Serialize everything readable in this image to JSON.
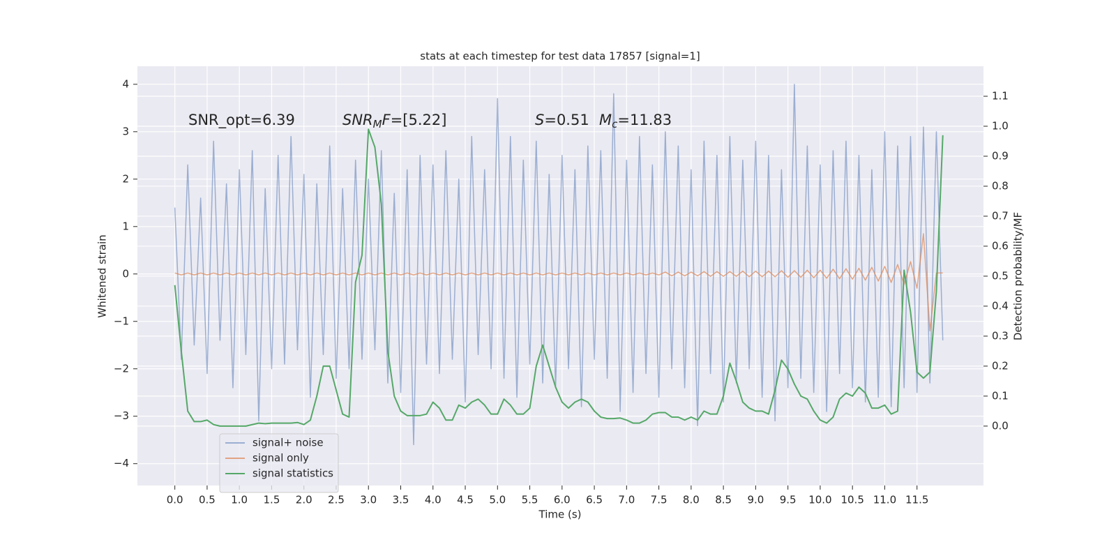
{
  "chart_data": {
    "type": "line",
    "title": "stats at each timestep for test data 17857 [signal=1]",
    "x_label": "Time (s)",
    "y_label": "Whitened strain",
    "y2_label": "Detection probability/MF",
    "x": [
      0.0,
      0.1,
      0.2,
      0.3,
      0.4,
      0.5,
      0.6,
      0.7,
      0.8,
      0.9,
      1.0,
      1.1,
      1.2,
      1.3,
      1.4,
      1.5,
      1.6,
      1.7,
      1.8,
      1.9,
      2.0,
      2.1,
      2.2,
      2.3,
      2.4,
      2.5,
      2.6,
      2.7,
      2.8,
      2.9,
      3.0,
      3.1,
      3.2,
      3.3,
      3.4,
      3.5,
      3.6,
      3.7,
      3.8,
      3.9,
      4.0,
      4.1,
      4.2,
      4.3,
      4.4,
      4.5,
      4.6,
      4.7,
      4.8,
      4.9,
      5.0,
      5.1,
      5.2,
      5.3,
      5.4,
      5.5,
      5.6,
      5.7,
      5.8,
      5.9,
      6.0,
      6.1,
      6.2,
      6.3,
      6.4,
      6.5,
      6.6,
      6.7,
      6.8,
      6.9,
      7.0,
      7.1,
      7.2,
      7.3,
      7.4,
      7.5,
      7.6,
      7.7,
      7.8,
      7.9,
      8.0,
      8.1,
      8.2,
      8.3,
      8.4,
      8.5,
      8.6,
      8.7,
      8.8,
      8.9,
      9.0,
      9.1,
      9.2,
      9.3,
      9.4,
      9.5,
      9.6,
      9.7,
      9.8,
      9.9,
      10.0,
      10.1,
      10.2,
      10.3,
      10.4,
      10.5,
      10.6,
      10.7,
      10.8,
      10.9,
      11.0,
      11.1,
      11.2,
      11.3,
      11.4,
      11.5,
      11.6,
      11.7,
      11.8,
      11.9
    ],
    "series": [
      {
        "name": "signal+ noise",
        "color": "#4c72b0",
        "alpha": 0.5,
        "axis": "y",
        "values": [
          1.4,
          -1.8,
          2.3,
          -1.5,
          1.6,
          -2.1,
          2.8,
          -1.4,
          1.9,
          -2.4,
          2.2,
          -1.7,
          2.6,
          -3.1,
          1.8,
          -2.0,
          2.5,
          -1.9,
          2.9,
          -1.6,
          2.1,
          -2.6,
          1.9,
          -1.7,
          2.7,
          -2.2,
          1.8,
          -2.0,
          2.4,
          -1.8,
          2.0,
          -1.6,
          2.6,
          -2.3,
          1.7,
          -2.5,
          2.2,
          -3.6,
          2.5,
          -1.9,
          2.3,
          -2.1,
          2.6,
          -1.8,
          2.0,
          -2.7,
          2.9,
          -1.7,
          2.2,
          -2.0,
          3.7,
          -2.2,
          2.9,
          -2.6,
          2.4,
          -1.9,
          2.8,
          -2.3,
          2.1,
          -2.4,
          2.5,
          -2.0,
          2.2,
          -2.8,
          2.7,
          -1.8,
          2.6,
          -2.2,
          3.8,
          -2.9,
          2.4,
          -2.5,
          2.9,
          -2.1,
          2.3,
          -2.6,
          3.0,
          -2.0,
          2.7,
          -2.4,
          2.2,
          -3.2,
          2.8,
          -2.1,
          2.5,
          -2.7,
          2.9,
          -2.3,
          2.4,
          -2.0,
          2.8,
          -2.6,
          2.5,
          -3.1,
          2.2,
          -2.4,
          4.0,
          -2.2,
          2.7,
          -2.5,
          2.3,
          -2.9,
          2.6,
          -2.1,
          2.8,
          -2.4,
          2.5,
          -2.7,
          2.2,
          -2.6,
          3.0,
          -2.8,
          2.7,
          -2.4,
          2.9,
          -2.5,
          3.1,
          -2.3,
          3.0,
          -1.4
        ]
      },
      {
        "name": "signal only",
        "color": "#dd8452",
        "alpha": 0.7,
        "axis": "y",
        "values": [
          0.02,
          -0.02,
          0.02,
          -0.02,
          0.02,
          -0.02,
          0.02,
          -0.02,
          0.02,
          -0.02,
          0.02,
          -0.02,
          0.02,
          -0.02,
          0.02,
          -0.02,
          0.02,
          -0.02,
          0.02,
          -0.02,
          0.02,
          -0.02,
          0.02,
          -0.02,
          0.02,
          -0.02,
          0.02,
          -0.02,
          0.02,
          -0.02,
          0.02,
          -0.02,
          0.02,
          -0.02,
          0.02,
          -0.02,
          0.02,
          -0.02,
          0.02,
          -0.02,
          0.02,
          -0.02,
          0.02,
          -0.02,
          0.02,
          -0.02,
          0.02,
          -0.02,
          0.02,
          -0.02,
          0.02,
          -0.02,
          0.02,
          -0.02,
          0.02,
          -0.02,
          0.02,
          -0.02,
          0.02,
          -0.02,
          0.02,
          -0.02,
          0.02,
          -0.02,
          0.02,
          -0.02,
          0.02,
          -0.02,
          0.02,
          -0.02,
          0.02,
          -0.02,
          0.02,
          -0.02,
          0.02,
          -0.02,
          0.04,
          -0.04,
          0.04,
          -0.04,
          0.04,
          -0.04,
          0.05,
          -0.05,
          0.05,
          -0.05,
          0.05,
          -0.05,
          0.06,
          -0.06,
          0.06,
          -0.06,
          0.06,
          -0.06,
          0.07,
          -0.07,
          0.07,
          -0.07,
          0.08,
          -0.08,
          0.08,
          -0.09,
          0.1,
          -0.1,
          0.11,
          -0.11,
          0.12,
          -0.13,
          0.14,
          -0.15,
          0.16,
          -0.18,
          0.2,
          -0.22,
          0.26,
          -0.3,
          0.85,
          -1.2,
          0.02,
          0.02
        ]
      },
      {
        "name": "signal statistics",
        "color": "#55a868",
        "axis": "y2",
        "values": [
          0.47,
          0.25,
          0.05,
          0.015,
          0.015,
          0.02,
          0.005,
          0.0,
          0.0,
          0.0,
          0.0,
          0.0,
          0.005,
          0.01,
          0.008,
          0.01,
          0.01,
          0.01,
          0.01,
          0.012,
          0.005,
          0.02,
          0.1,
          0.2,
          0.2,
          0.12,
          0.04,
          0.03,
          0.48,
          0.57,
          0.99,
          0.93,
          0.74,
          0.25,
          0.1,
          0.05,
          0.035,
          0.035,
          0.035,
          0.04,
          0.08,
          0.06,
          0.02,
          0.02,
          0.07,
          0.06,
          0.08,
          0.09,
          0.07,
          0.04,
          0.04,
          0.09,
          0.07,
          0.04,
          0.04,
          0.06,
          0.2,
          0.27,
          0.2,
          0.13,
          0.08,
          0.06,
          0.08,
          0.09,
          0.08,
          0.05,
          0.03,
          0.025,
          0.025,
          0.027,
          0.02,
          0.01,
          0.01,
          0.02,
          0.04,
          0.045,
          0.045,
          0.03,
          0.03,
          0.02,
          0.03,
          0.02,
          0.05,
          0.04,
          0.04,
          0.1,
          0.21,
          0.15,
          0.08,
          0.06,
          0.05,
          0.05,
          0.04,
          0.12,
          0.22,
          0.19,
          0.14,
          0.1,
          0.09,
          0.05,
          0.02,
          0.01,
          0.03,
          0.09,
          0.11,
          0.1,
          0.13,
          0.11,
          0.06,
          0.06,
          0.07,
          0.04,
          0.05,
          0.52,
          0.38,
          0.18,
          0.16,
          0.18,
          0.45,
          0.97
        ]
      }
    ],
    "xlim": [
      -0.58,
      12.53
    ],
    "xticks": [
      {
        "value": 0,
        "label": "0.0"
      },
      0.5,
      {
        "value": 1,
        "label": "1.0"
      },
      1.5,
      {
        "value": 2,
        "label": "2.0"
      },
      2.5,
      {
        "value": 3,
        "label": "3.0"
      },
      3.5,
      {
        "value": 4,
        "label": "4.0"
      },
      4.5,
      {
        "value": 5,
        "label": "5.0"
      },
      5.5,
      {
        "value": 6,
        "label": "6.0"
      },
      6.5,
      {
        "value": 7,
        "label": "7.0"
      },
      7.5,
      {
        "value": 8,
        "label": "8.0"
      },
      8.5,
      {
        "value": 9,
        "label": "9.0"
      },
      9.5,
      {
        "value": 10,
        "label": "10.0"
      },
      10.5,
      {
        "value": 11,
        "label": "11.0"
      },
      11.5
    ],
    "ylim": [
      -4.46,
      4.38
    ],
    "yticks": [
      {
        "value": -4,
        "label": "−4"
      },
      {
        "value": -3,
        "label": "−3"
      },
      {
        "value": -2,
        "label": "−2"
      },
      {
        "value": -1,
        "label": "−1"
      },
      0,
      1,
      2,
      3,
      4
    ],
    "y2lim": [
      -0.198,
      1.2
    ],
    "y2ticks": [
      {
        "value": 0,
        "label": "0.0"
      },
      0.1,
      0.2,
      0.3,
      0.4,
      0.5,
      0.6,
      0.7,
      0.8,
      0.9,
      {
        "value": 1,
        "label": "1.0"
      },
      1.1
    ],
    "grid": true,
    "legend": "lower left",
    "annotations": [
      [
        {
          "text": "SNR_opt=6.39"
        }
      ],
      [
        {
          "text": "SNR",
          "style": "italic"
        },
        {
          "text": "M",
          "style": "italic-sub"
        },
        {
          "text": "F",
          "style": "italic"
        },
        {
          "text": "=[5.22]"
        }
      ],
      [
        {
          "text": "S",
          "style": "italic"
        },
        {
          "text": "=0.51"
        }
      ],
      [
        {
          "text": "M",
          "style": "italic"
        },
        {
          "text": "c",
          "style": "italic-sub"
        },
        {
          "text": "=11.83"
        }
      ]
    ]
  }
}
